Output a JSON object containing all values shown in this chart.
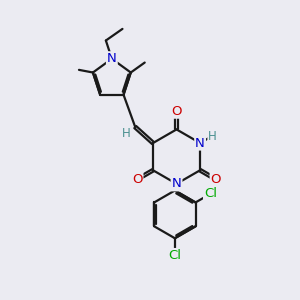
{
  "bg_color": "#ebebf2",
  "bond_color": "#1a1a1a",
  "bond_width": 1.6,
  "N_color": "#0000cc",
  "O_color": "#cc0000",
  "Cl_color": "#00aa00",
  "H_color": "#4a9090",
  "font_size": 8.5,
  "figsize": [
    3.0,
    3.0
  ],
  "dpi": 100,
  "xlim": [
    1.0,
    9.0
  ],
  "ylim": [
    0.5,
    9.5
  ]
}
